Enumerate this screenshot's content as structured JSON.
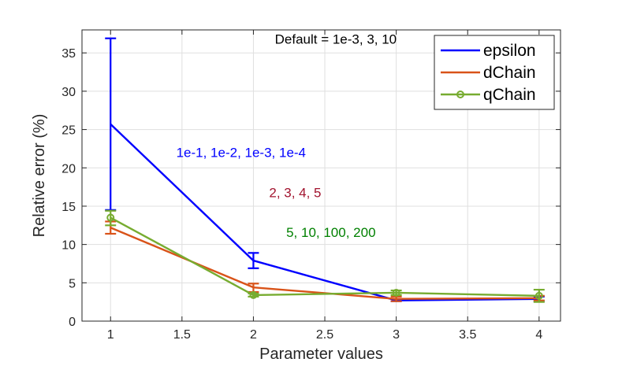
{
  "chart_data": {
    "type": "line",
    "xlabel": "Parameter values",
    "ylabel": "Relative error (%)",
    "xlim": [
      0.8,
      4.15
    ],
    "ylim": [
      0,
      38
    ],
    "xticks": [
      1,
      1.5,
      2,
      2.5,
      3,
      3.5,
      4
    ],
    "xtick_labels": [
      "1",
      "1.5",
      "2",
      "2.5",
      "3",
      "3.5",
      "4"
    ],
    "yticks": [
      0,
      5,
      10,
      15,
      20,
      25,
      30,
      35
    ],
    "ytick_labels": [
      "0",
      "5",
      "10",
      "15",
      "20",
      "25",
      "30",
      "35"
    ],
    "grid": true,
    "legend_position": "top-right",
    "series": [
      {
        "name": "epsilon",
        "color": "#0000ff",
        "marker": "none",
        "x": [
          1,
          2,
          3,
          4
        ],
        "y": [
          25.7,
          7.9,
          2.7,
          2.9
        ],
        "err_low": [
          14.5,
          6.9,
          2.6,
          2.6
        ],
        "err_high": [
          36.9,
          8.9,
          2.9,
          3.2
        ]
      },
      {
        "name": "dChain",
        "color": "#d95319",
        "marker": "none",
        "x": [
          1,
          2,
          3,
          4
        ],
        "y": [
          12.2,
          4.4,
          2.9,
          3.0
        ],
        "err_low": [
          11.4,
          3.8,
          2.6,
          2.7
        ],
        "err_high": [
          13.0,
          4.9,
          3.2,
          3.3
        ]
      },
      {
        "name": "qChain",
        "color": "#77ac30",
        "marker": "circle",
        "x": [
          1,
          2,
          3,
          4
        ],
        "y": [
          13.5,
          3.4,
          3.7,
          3.3
        ],
        "err_low": [
          12.5,
          3.2,
          3.4,
          2.5
        ],
        "err_high": [
          14.4,
          3.6,
          4.0,
          4.1
        ]
      }
    ],
    "annotations": [
      {
        "text": "Default = 1e-3, 3, 10",
        "x": 2.15,
        "y": 36.2,
        "color": "#000000"
      },
      {
        "text": "1e-1, 1e-2, 1e-3, 1e-4",
        "x": 1.46,
        "y": 21.4,
        "color": "#0000ff"
      },
      {
        "text": "2, 3, 4, 5",
        "x": 2.11,
        "y": 16.2,
        "color": "#a2142f"
      },
      {
        "text": "5, 10, 100, 200",
        "x": 2.23,
        "y": 11.0,
        "color": "#008000"
      }
    ]
  }
}
